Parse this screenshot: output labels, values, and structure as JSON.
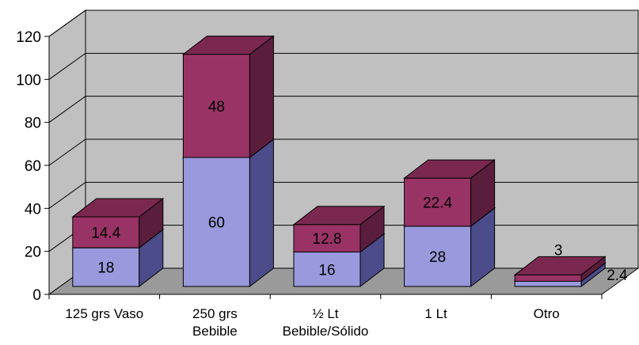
{
  "chart_data": {
    "type": "bar",
    "stacked": true,
    "three_d": true,
    "title": "",
    "xlabel": "",
    "ylabel": "",
    "ylim": [
      0,
      120
    ],
    "yticks": [
      0,
      20,
      40,
      60,
      80,
      100,
      120
    ],
    "grid": true,
    "legend": "none",
    "categories": [
      [
        "125 grs Vaso"
      ],
      [
        "250 grs",
        "Bebible"
      ],
      [
        "½ Lt",
        "Bebible/Sólido"
      ],
      [
        "1 Lt"
      ],
      [
        "Otro"
      ]
    ],
    "series": [
      {
        "values": [
          18,
          60,
          16,
          28,
          2.4
        ],
        "labels": [
          "18",
          "60",
          "16",
          "28",
          "2.4"
        ]
      },
      {
        "values": [
          14.4,
          48,
          12.8,
          22.4,
          3
        ],
        "labels": [
          "14.4",
          "48",
          "12.8",
          "22.4",
          "3"
        ]
      }
    ],
    "colors": {
      "series0_front": "#9999dd",
      "series0_side": "#4c4c8a",
      "series0_top": "#7b7bc2",
      "series1_front": "#993366",
      "series1_side": "#5a1e3c",
      "series1_top": "#7a2850",
      "wall": "#c0c0c0",
      "floor": "#9a9a9a",
      "grid": "#000000"
    }
  }
}
